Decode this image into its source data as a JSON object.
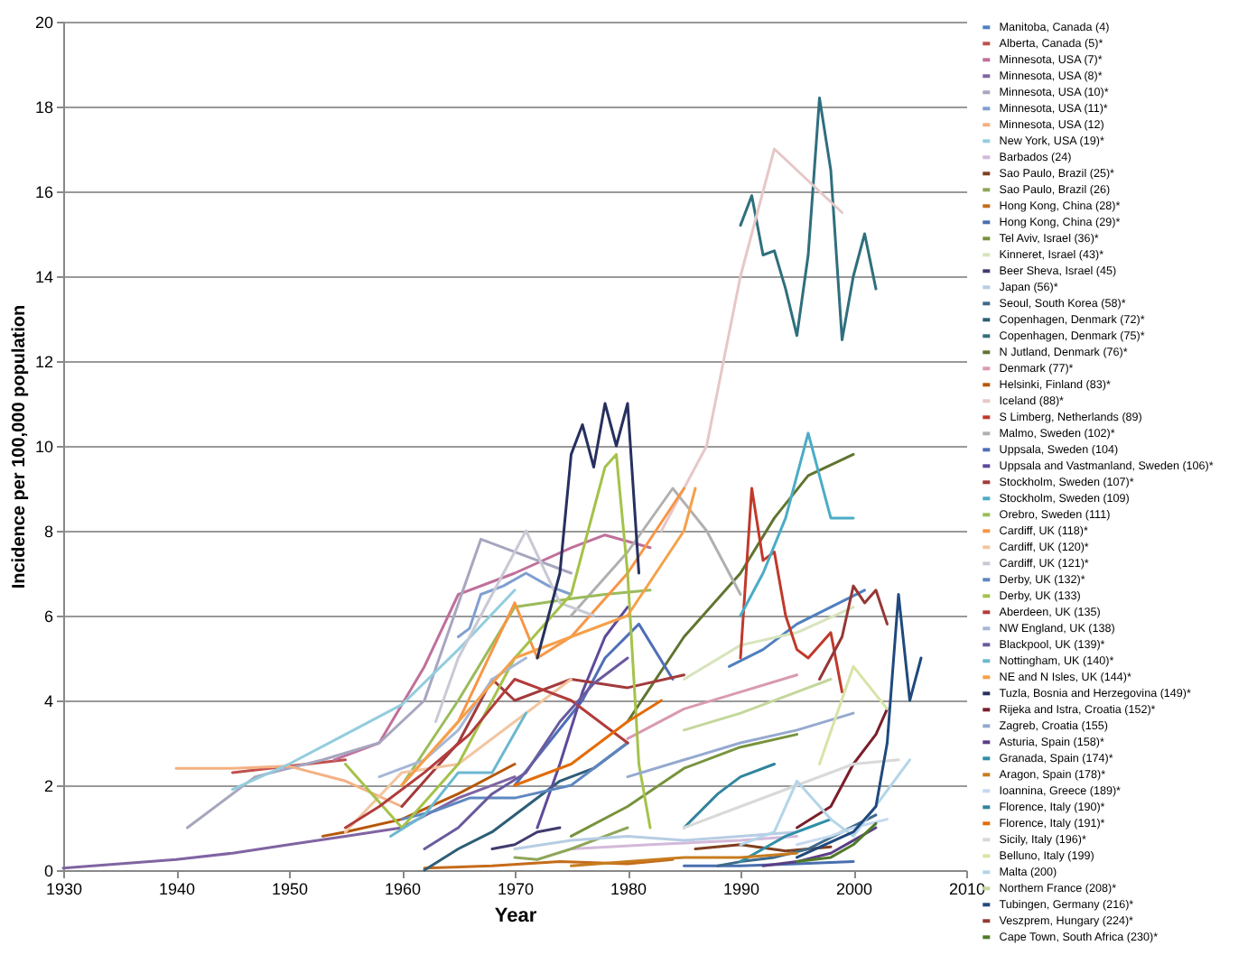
{
  "chart_data": {
    "type": "line",
    "xlabel": "Year",
    "ylabel": "Incidence per 100,000 population",
    "xlim": [
      1930,
      2010
    ],
    "xticks": [
      1930,
      1940,
      1950,
      1960,
      1970,
      1980,
      1990,
      2000,
      2010
    ],
    "ylim": [
      0,
      20
    ],
    "yticks": [
      0,
      2,
      4,
      6,
      8,
      10,
      12,
      14,
      16,
      18,
      20
    ],
    "grid": "y",
    "legend": "right",
    "series": [
      {
        "name": "Manitoba, Canada (4)",
        "color": "#4f81bd",
        "x": [
          1989,
          1992,
          1995,
          1998,
          2001
        ],
        "values": [
          4.8,
          5.2,
          5.8,
          6.2,
          6.6
        ]
      },
      {
        "name": "Alberta, Canada (5)*",
        "color": "#c0504d",
        "x": [
          1945,
          1950,
          1955
        ],
        "values": [
          2.3,
          2.45,
          2.6
        ]
      },
      {
        "name": "Minnesota, USA (7)*",
        "color": "#c0709a",
        "x": [
          1954,
          1958,
          1962,
          1965,
          1970,
          1975,
          1978,
          1982
        ],
        "values": [
          2.6,
          3.0,
          4.8,
          6.5,
          7.0,
          7.6,
          7.9,
          7.6
        ]
      },
      {
        "name": "Minnesota, USA (8)*",
        "color": "#8064a2",
        "x": [
          1930,
          1935,
          1940,
          1945,
          1950,
          1955,
          1960,
          1965,
          1970
        ],
        "values": [
          0.05,
          0.15,
          0.25,
          0.4,
          0.6,
          0.8,
          1.0,
          1.7,
          2.2
        ]
      },
      {
        "name": "Minnesota, USA (10)*",
        "color": "#a6a6bf",
        "x": [
          1941,
          1947,
          1953,
          1958,
          1962,
          1967,
          1971,
          1975
        ],
        "values": [
          1.0,
          2.2,
          2.6,
          3.0,
          4.0,
          7.8,
          7.4,
          7.0
        ]
      },
      {
        "name": "Minnesota, USA (11)*",
        "color": "#7f9fd0",
        "x": [
          1965,
          1966,
          1967,
          1969,
          1971,
          1973,
          1975
        ],
        "values": [
          5.5,
          5.7,
          6.5,
          6.7,
          7.0,
          6.7,
          6.5
        ]
      },
      {
        "name": "Minnesota, USA (12)",
        "color": "#f4b183",
        "x": [
          1940,
          1945,
          1950,
          1955,
          1960
        ],
        "values": [
          2.4,
          2.4,
          2.45,
          2.1,
          1.5
        ]
      },
      {
        "name": "New York, USA (19)*",
        "color": "#93cddd",
        "x": [
          1945,
          1950,
          1955,
          1960,
          1965,
          1970
        ],
        "values": [
          1.9,
          2.5,
          3.2,
          3.9,
          5.2,
          6.6
        ]
      },
      {
        "name": "Barbados (24)",
        "color": "#d4b9da",
        "x": [
          1975,
          1982,
          1990,
          1995
        ],
        "values": [
          0.5,
          0.6,
          0.7,
          0.8
        ]
      },
      {
        "name": "Sao Paulo, Brazil (25)*",
        "color": "#7f3f1f",
        "x": [
          1986,
          1990,
          1994,
          1998
        ],
        "values": [
          0.5,
          0.6,
          0.45,
          0.55
        ]
      },
      {
        "name": "Sao Paulo, Brazil (26)",
        "color": "#8ea65a",
        "x": [
          1970,
          1972,
          1975,
          1978,
          1980
        ],
        "values": [
          0.3,
          0.25,
          0.5,
          0.8,
          1.0
        ]
      },
      {
        "name": "Hong Kong, China (28)*",
        "color": "#c56c1a",
        "x": [
          1962,
          1968,
          1974,
          1980,
          1984
        ],
        "values": [
          0.05,
          0.1,
          0.2,
          0.15,
          0.25
        ]
      },
      {
        "name": "Hong Kong, China (29)*",
        "color": "#4a6fb0",
        "x": [
          1985,
          1990,
          1995,
          2000
        ],
        "values": [
          0.1,
          0.1,
          0.15,
          0.2
        ]
      },
      {
        "name": "Tel Aviv, Israel (36)*",
        "color": "#77933c",
        "x": [
          1975,
          1980,
          1985,
          1990,
          1995
        ],
        "values": [
          0.8,
          1.5,
          2.4,
          2.9,
          3.2
        ]
      },
      {
        "name": "Kinneret, Israel (43)*",
        "color": "#d7e4bd",
        "x": [
          1985,
          1990,
          1995,
          2000
        ],
        "values": [
          4.5,
          5.3,
          5.6,
          6.2
        ]
      },
      {
        "name": "Beer Sheva, Israel (45)",
        "color": "#403b6e",
        "x": [
          1968,
          1970,
          1972,
          1974
        ],
        "values": [
          0.5,
          0.6,
          0.9,
          1.0
        ]
      },
      {
        "name": "Japan (56)*",
        "color": "#b7cde4",
        "x": [
          1970,
          1975,
          1980,
          1985,
          1990,
          1995
        ],
        "values": [
          0.5,
          0.7,
          0.8,
          0.7,
          0.8,
          0.9
        ]
      },
      {
        "name": "Seoul, South Korea (58)*",
        "color": "#3e6a8a",
        "x": [
          1988,
          1990,
          1993,
          1996,
          1999,
          2002
        ],
        "values": [
          0.1,
          0.2,
          0.3,
          0.5,
          0.9,
          1.3
        ]
      },
      {
        "name": "Copenhagen, Denmark (72)*",
        "color": "#2e5d77",
        "x": [
          1962,
          1965,
          1968,
          1971,
          1974,
          1977,
          1980
        ],
        "values": [
          0.0,
          0.5,
          0.9,
          1.5,
          2.1,
          2.4,
          3.0
        ]
      },
      {
        "name": "Copenhagen, Denmark (75)*",
        "color": "#2f6f7e",
        "x": [
          1990,
          1991,
          1992,
          1993,
          1994,
          1995,
          1996,
          1997,
          1998,
          1999,
          2000,
          2001,
          2002
        ],
        "values": [
          15.2,
          15.9,
          14.5,
          14.6,
          13.7,
          12.6,
          14.5,
          18.2,
          16.5,
          12.5,
          14.0,
          15.0,
          13.7
        ]
      },
      {
        "name": "N Jutland, Denmark (76)*",
        "color": "#5f7530",
        "x": [
          1980,
          1985,
          1990,
          1993,
          1996,
          2000
        ],
        "values": [
          3.5,
          5.5,
          7.0,
          8.3,
          9.3,
          9.8
        ]
      },
      {
        "name": "Denmark (77)*",
        "color": "#d99ab0",
        "x": [
          1980,
          1985,
          1990,
          1995
        ],
        "values": [
          3.1,
          3.8,
          4.2,
          4.6
        ]
      },
      {
        "name": "Helsinki, Finland (83)*",
        "color": "#b65708",
        "x": [
          1953,
          1955,
          1960,
          1965,
          1970
        ],
        "values": [
          0.8,
          0.9,
          1.2,
          1.8,
          2.5
        ]
      },
      {
        "name": "Iceland (88)*",
        "color": "#e6c7c7",
        "x": [
          1983,
          1987,
          1990,
          1993,
          1999
        ],
        "values": [
          8.0,
          10.0,
          14.0,
          17.0,
          15.5
        ]
      },
      {
        "name": "S Limberg, Netherlands (89)",
        "color": "#c0392b",
        "x": [
          1990,
          1991,
          1992,
          1993,
          1994,
          1995,
          1996,
          1998,
          1999
        ],
        "values": [
          5.0,
          9.0,
          7.3,
          7.5,
          6.0,
          5.2,
          5.0,
          5.6,
          4.2
        ]
      },
      {
        "name": "Malmo, Sweden (102)*",
        "color": "#b0b0b0",
        "x": [
          1975,
          1980,
          1984,
          1987,
          1990
        ],
        "values": [
          6.0,
          7.5,
          9.0,
          8.0,
          6.5
        ]
      },
      {
        "name": "Uppsala, Sweden (104)",
        "color": "#4f6fb8",
        "x": [
          1970,
          1973,
          1976,
          1978,
          1981,
          1984
        ],
        "values": [
          2.0,
          3.0,
          4.0,
          5.0,
          5.8,
          4.5
        ]
      },
      {
        "name": "Uppsala and Vastmanland, Sweden (106)*",
        "color": "#5d4a9a",
        "x": [
          1972,
          1974,
          1976,
          1978,
          1980
        ],
        "values": [
          1.0,
          2.5,
          4.2,
          5.5,
          6.2
        ]
      },
      {
        "name": "Stockholm, Sweden (107)*",
        "color": "#a33a3a",
        "x": [
          1960,
          1965,
          1968,
          1970,
          1975,
          1980,
          1985
        ],
        "values": [
          1.5,
          3.0,
          4.5,
          4.0,
          4.5,
          4.3,
          4.6
        ]
      },
      {
        "name": "Stockholm, Sweden (109)",
        "color": "#4bacc6",
        "x": [
          1990,
          1992,
          1994,
          1996,
          1998,
          2000
        ],
        "values": [
          6.0,
          7.0,
          8.3,
          10.3,
          8.3,
          8.3
        ]
      },
      {
        "name": "Orebro, Sweden (111)",
        "color": "#9bbb59",
        "x": [
          1960,
          1965,
          1970,
          1975,
          1978,
          1982
        ],
        "values": [
          2.0,
          4.0,
          6.2,
          6.4,
          6.5,
          6.6
        ]
      },
      {
        "name": "Cardiff, UK (118)*",
        "color": "#f79646",
        "x": [
          1960,
          1965,
          1970,
          1972,
          1975,
          1980,
          1985
        ],
        "values": [
          2.0,
          3.5,
          6.3,
          5.0,
          5.5,
          7.0,
          9.0
        ]
      },
      {
        "name": "Cardiff, UK (120)*",
        "color": "#f2c6a0",
        "x": [
          1955,
          1960,
          1965,
          1970,
          1975
        ],
        "values": [
          0.9,
          2.3,
          2.5,
          3.5,
          4.5
        ]
      },
      {
        "name": "Cardiff, UK (121)*",
        "color": "#c9c9d6",
        "x": [
          1963,
          1965,
          1968,
          1971,
          1974,
          1977
        ],
        "values": [
          3.5,
          5.0,
          6.5,
          8.0,
          6.3,
          6.0
        ]
      },
      {
        "name": "Derby, UK (132)*",
        "color": "#5e87c0",
        "x": [
          1960,
          1963,
          1966,
          1970,
          1975,
          1980
        ],
        "values": [
          1.2,
          1.4,
          1.7,
          1.7,
          2.0,
          3.0
        ]
      },
      {
        "name": "Derby, UK (133)",
        "color": "#a5c24a",
        "x": [
          1955,
          1960,
          1965,
          1970,
          1975,
          1978,
          1979,
          1980,
          1981,
          1982
        ],
        "values": [
          2.5,
          1.0,
          2.5,
          5.0,
          6.5,
          9.5,
          9.8,
          7.0,
          2.5,
          1.0
        ]
      },
      {
        "name": "Aberdeen, UK (135)",
        "color": "#b23c3c",
        "x": [
          1955,
          1958,
          1962,
          1966,
          1970,
          1975,
          1980
        ],
        "values": [
          1.0,
          1.5,
          2.3,
          3.2,
          4.5,
          4.0,
          3.0
        ]
      },
      {
        "name": "NW England, UK (138)",
        "color": "#a6b7d8",
        "x": [
          1958,
          1962,
          1965,
          1968,
          1971
        ],
        "values": [
          2.2,
          2.6,
          3.3,
          4.5,
          5.0
        ]
      },
      {
        "name": "Blackpool, UK (139)*",
        "color": "#6a5a9e",
        "x": [
          1962,
          1965,
          1968,
          1971,
          1974,
          1977,
          1980
        ],
        "values": [
          0.5,
          1.0,
          1.8,
          2.3,
          3.5,
          4.4,
          5.0
        ]
      },
      {
        "name": "Nottingham, UK (140)*",
        "color": "#6cb8d0",
        "x": [
          1959,
          1962,
          1965,
          1968,
          1971
        ],
        "values": [
          0.8,
          1.3,
          2.3,
          2.3,
          3.7
        ]
      },
      {
        "name": "NE and N Isles, UK (144)*",
        "color": "#f5a04a",
        "x": [
          1960,
          1965,
          1970,
          1975,
          1980,
          1985,
          1986
        ],
        "values": [
          2.0,
          3.5,
          5.0,
          5.5,
          6.0,
          8.0,
          9.0
        ]
      },
      {
        "name": "Tuzla, Bosnia and Herzegovina (149)*",
        "color": "#27305e",
        "x": [
          1972,
          1974,
          1975,
          1976,
          1977,
          1978,
          1979,
          1980,
          1981
        ],
        "values": [
          5.0,
          7.0,
          9.8,
          10.5,
          9.5,
          11.0,
          10.0,
          11.0,
          7.0
        ]
      },
      {
        "name": "Rijeka and Istra, Croatia (152)*",
        "color": "#7a1f2b",
        "x": [
          1995,
          1998,
          2000,
          2002,
          2003
        ],
        "values": [
          1.0,
          1.5,
          2.5,
          3.2,
          3.8
        ]
      },
      {
        "name": "Zagreb, Croatia (155)",
        "color": "#95a9d0",
        "x": [
          1980,
          1985,
          1990,
          1995,
          2000
        ],
        "values": [
          2.2,
          2.6,
          3.0,
          3.3,
          3.7
        ]
      },
      {
        "name": "Asturia, Spain (158)*",
        "color": "#5b3f86",
        "x": [
          1992,
          1995,
          1998,
          2000,
          2002
        ],
        "values": [
          0.1,
          0.2,
          0.4,
          0.7,
          1.0
        ]
      },
      {
        "name": "Granada, Spain (174)*",
        "color": "#2f8fa8",
        "x": [
          1990,
          1992,
          1994,
          1996,
          1998
        ],
        "values": [
          0.2,
          0.5,
          0.8,
          1.0,
          1.2
        ]
      },
      {
        "name": "Aragon, Spain (178)*",
        "color": "#c77c1e",
        "x": [
          1975,
          1980,
          1985,
          1990,
          1995
        ],
        "values": [
          0.1,
          0.2,
          0.3,
          0.3,
          0.4
        ]
      },
      {
        "name": "Ioannina, Greece (189)*",
        "color": "#c6d9f1",
        "x": [
          1995,
          1998,
          2000,
          2003
        ],
        "values": [
          0.6,
          0.8,
          1.0,
          1.2
        ]
      },
      {
        "name": "Florence, Italy (190)*",
        "color": "#31859c",
        "x": [
          1985,
          1988,
          1990,
          1993
        ],
        "values": [
          1.0,
          1.8,
          2.2,
          2.5
        ]
      },
      {
        "name": "Florence, Italy (191)*",
        "color": "#e36c09",
        "x": [
          1970,
          1975,
          1980,
          1983
        ],
        "values": [
          2.0,
          2.5,
          3.5,
          4.0
        ]
      },
      {
        "name": "Sicily, Italy (196)*",
        "color": "#d9d9d9",
        "x": [
          1985,
          1990,
          1995,
          2000,
          2004
        ],
        "values": [
          1.0,
          1.5,
          2.0,
          2.5,
          2.6
        ]
      },
      {
        "name": "Belluno, Italy (199)",
        "color": "#d7e4a6",
        "x": [
          1997,
          2000,
          2003
        ],
        "values": [
          2.5,
          4.8,
          3.8
        ]
      },
      {
        "name": "Malta (200)",
        "color": "#b4d5e8",
        "x": [
          1990,
          1993,
          1995,
          1998,
          2000,
          2005
        ],
        "values": [
          0.6,
          0.9,
          2.1,
          1.2,
          0.8,
          2.6
        ]
      },
      {
        "name": "Northern France (208)*",
        "color": "#c4d79b",
        "x": [
          1985,
          1990,
          1995,
          1998
        ],
        "values": [
          3.3,
          3.7,
          4.2,
          4.5
        ]
      },
      {
        "name": "Tubingen, Germany (216)*",
        "color": "#1f497d",
        "x": [
          1995,
          2000,
          2002,
          2003,
          2004,
          2005,
          2006
        ],
        "values": [
          0.3,
          0.9,
          1.5,
          3.0,
          6.5,
          4.0,
          5.0
        ]
      },
      {
        "name": "Veszprem, Hungary (224)*",
        "color": "#953735",
        "x": [
          1997,
          1999,
          2000,
          2001,
          2002,
          2003
        ],
        "values": [
          4.5,
          5.5,
          6.7,
          6.3,
          6.6,
          5.8
        ]
      },
      {
        "name": "Cape Town, South Africa (230)*",
        "color": "#4f7a28",
        "x": [
          1995,
          1998,
          2000,
          2002
        ],
        "values": [
          0.2,
          0.3,
          0.6,
          1.1
        ]
      }
    ]
  }
}
